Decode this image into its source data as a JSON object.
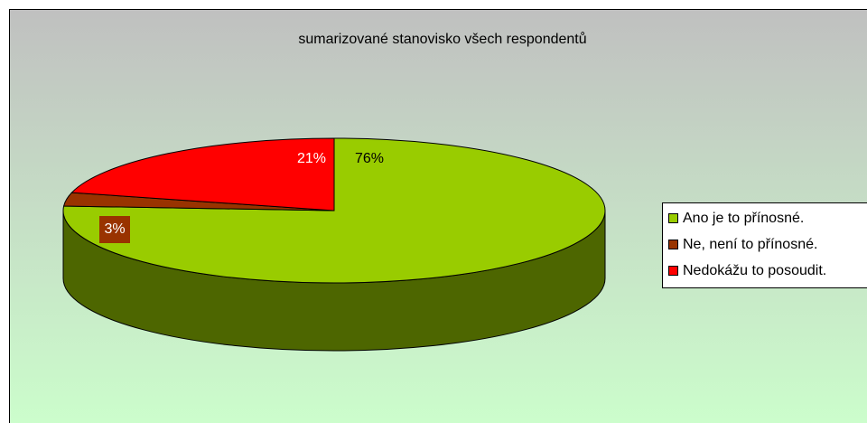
{
  "chart_data": {
    "type": "pie3d",
    "title": "sumarizované stanovisko všech respondentů",
    "categories": [
      "Ano je to přínosné.",
      "Ne, není to přínosné.",
      "Nedokážu to posoudit."
    ],
    "values": [
      76,
      3,
      21
    ],
    "value_labels": [
      "76%",
      "3%",
      "21%"
    ],
    "colors": [
      "#99cc00",
      "#993300",
      "#ff0000"
    ],
    "legend": "right"
  }
}
